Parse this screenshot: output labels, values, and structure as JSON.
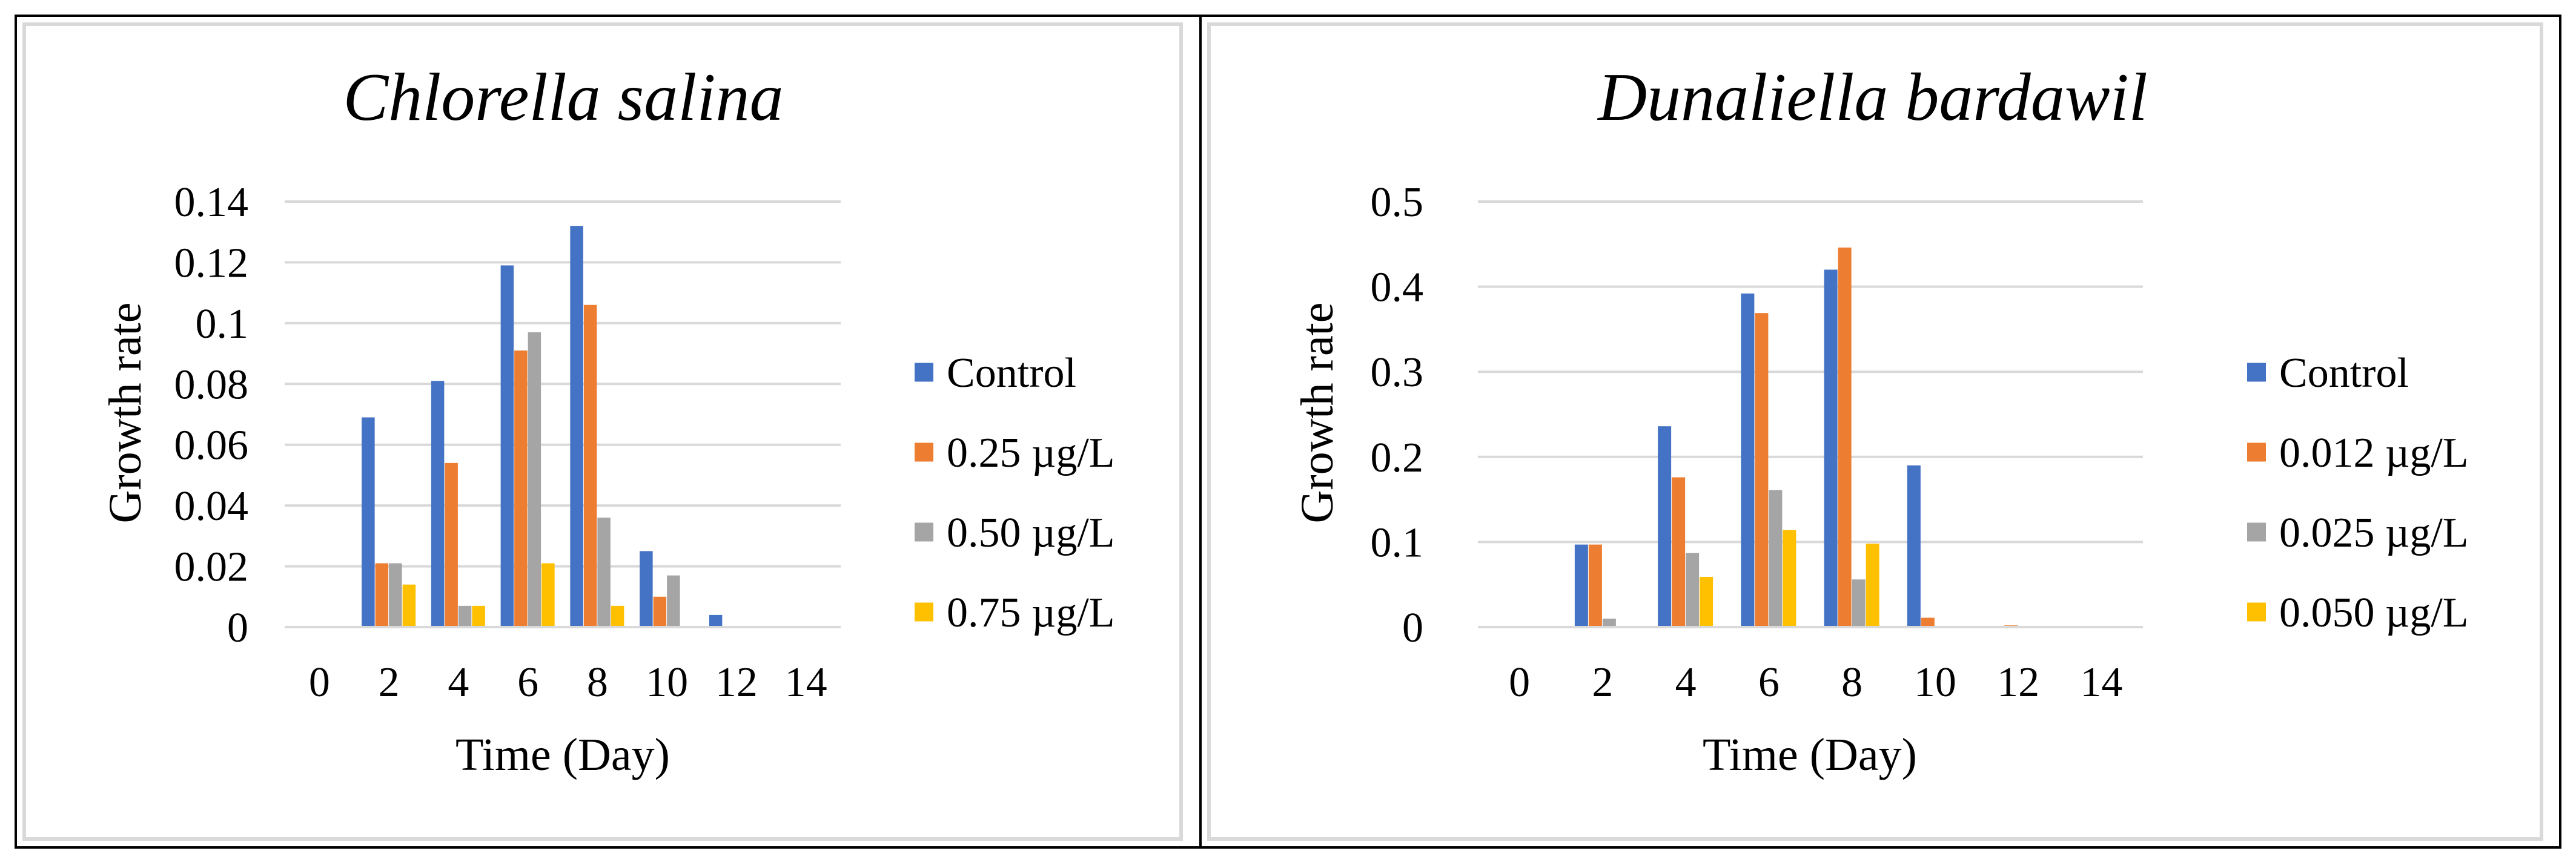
{
  "chart_data": [
    {
      "type": "bar",
      "title": "Chlorella salina",
      "xlabel": "Time (Day)",
      "ylabel": "Growth rate",
      "categories": [
        "0",
        "2",
        "4",
        "6",
        "8",
        "10",
        "12",
        "14"
      ],
      "ylim": [
        0,
        0.14
      ],
      "yticks": [
        "0",
        "0.02",
        "0.04",
        "0.06",
        "0.08",
        "0.1",
        "0.12",
        "0.14"
      ],
      "grid": true,
      "legend_position": "right",
      "series": [
        {
          "name": "Control",
          "color": "#4472C4",
          "values": [
            0,
            0.069,
            0.081,
            0.119,
            0.132,
            0.025,
            0.004,
            0
          ]
        },
        {
          "name": "0.25 µg/L",
          "color": "#ED7D31",
          "values": [
            0,
            0.021,
            0.054,
            0.091,
            0.106,
            0.01,
            0,
            0
          ]
        },
        {
          "name": "0.50 µg/L",
          "color": "#A5A5A5",
          "values": [
            0,
            0.021,
            0.007,
            0.097,
            0.036,
            0.017,
            0,
            0
          ]
        },
        {
          "name": "0.75 µg/L",
          "color": "#FFC000",
          "values": [
            0,
            0.014,
            0.007,
            0.021,
            0.007,
            0,
            0,
            0
          ]
        }
      ]
    },
    {
      "type": "bar",
      "title": "Dunaliella bardawil",
      "xlabel": "Time (Day)",
      "ylabel": "Growth rate",
      "categories": [
        "0",
        "2",
        "4",
        "6",
        "8",
        "10",
        "12",
        "14"
      ],
      "ylim": [
        0,
        0.5
      ],
      "yticks": [
        "0",
        "0.1",
        "0.2",
        "0.3",
        "0.4",
        "0.5"
      ],
      "grid": true,
      "legend_position": "right",
      "series": [
        {
          "name": "Control",
          "color": "#4472C4",
          "values": [
            0,
            0.097,
            0.236,
            0.392,
            0.42,
            0.19,
            0,
            0
          ]
        },
        {
          "name": "0.012 µg/L",
          "color": "#ED7D31",
          "values": [
            0,
            0.097,
            0.176,
            0.369,
            0.446,
            0.011,
            0.002,
            0
          ]
        },
        {
          "name": "0.025 µg/L",
          "color": "#A5A5A5",
          "values": [
            0,
            0.01,
            0.087,
            0.161,
            0.056,
            0,
            0,
            0
          ]
        },
        {
          "name": "0.050 µg/L",
          "color": "#FFC000",
          "values": [
            0,
            0,
            0.059,
            0.114,
            0.098,
            0,
            0,
            0
          ]
        }
      ]
    }
  ]
}
